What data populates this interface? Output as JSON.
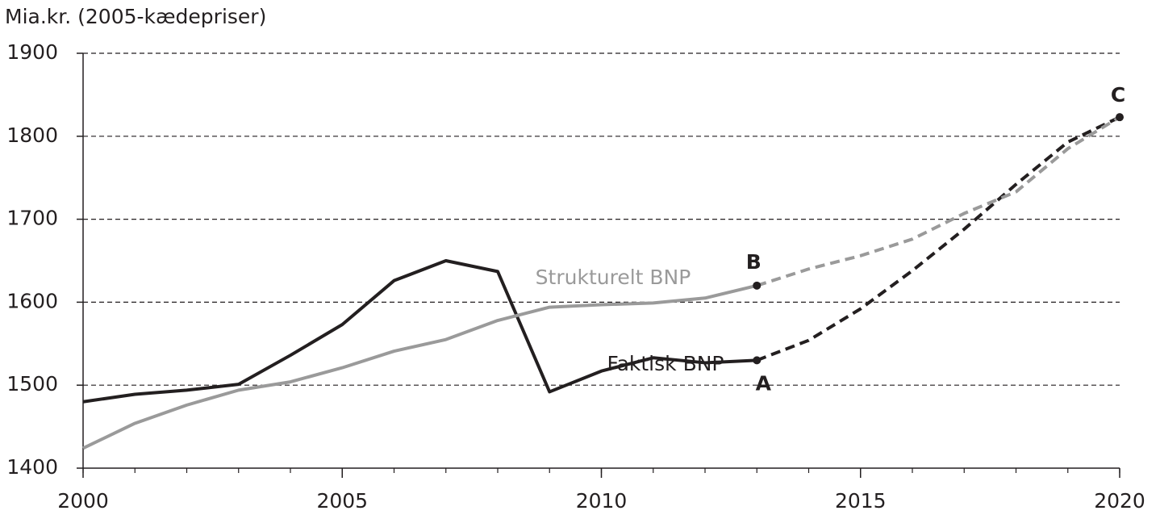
{
  "chart_data": {
    "type": "line",
    "ylabel": "Mia.kr. (2005-kædepriser)",
    "x": [
      2000,
      2001,
      2002,
      2003,
      2004,
      2005,
      2006,
      2007,
      2008,
      2009,
      2010,
      2011,
      2012,
      2013,
      2014,
      2015,
      2016,
      2017,
      2018,
      2019,
      2020
    ],
    "xlim": [
      2000,
      2020
    ],
    "xticks": [
      2000,
      2005,
      2010,
      2015,
      2020
    ],
    "ylim": [
      1400,
      1900
    ],
    "yticks": [
      1400,
      1500,
      1600,
      1700,
      1800,
      1900
    ],
    "grid": true,
    "projection_start": 2013,
    "series": [
      {
        "name": "Faktisk BNP",
        "color": "#231f20",
        "values": [
          1480,
          1489,
          1494,
          1501,
          1536,
          1573,
          1626,
          1650,
          1637,
          1492,
          1517,
          1533,
          1527,
          1530,
          1554,
          1592,
          1638,
          1688,
          1742,
          1793,
          1823
        ]
      },
      {
        "name": "Strukturelt BNP",
        "color": "#9a9a9a",
        "values": [
          1424,
          1454,
          1476,
          1494,
          1504,
          1521,
          1541,
          1555,
          1578,
          1594,
          1597,
          1599,
          1605,
          1620,
          1640,
          1656,
          1676,
          1707,
          1733,
          1785,
          1823
        ]
      }
    ],
    "annotations": [
      {
        "text": "A",
        "series": 0,
        "x": 2013
      },
      {
        "text": "B",
        "series": 1,
        "x": 2013
      },
      {
        "text": "C",
        "series": 0,
        "x": 2020
      }
    ]
  }
}
